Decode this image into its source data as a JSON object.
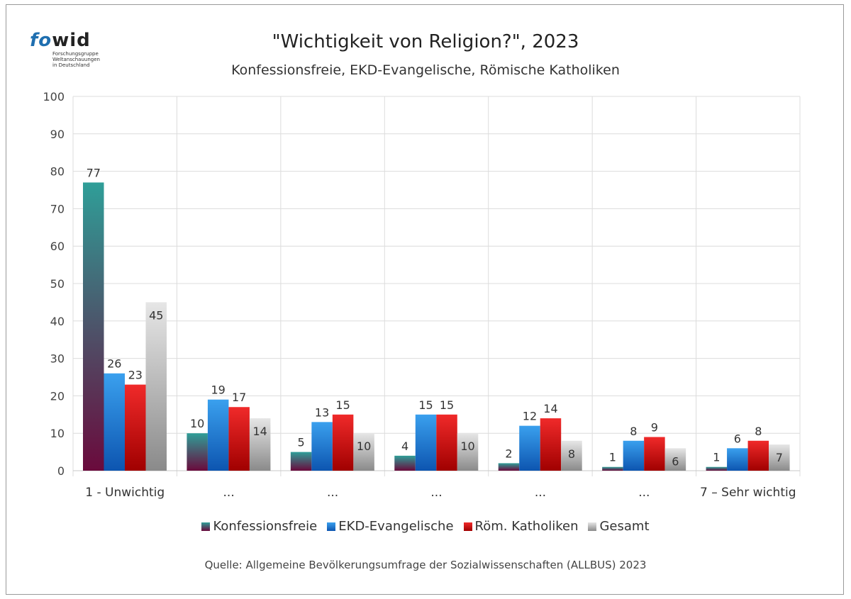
{
  "logo": {
    "word_fo": "fo",
    "word_wid": "wid",
    "subtitle": "Forschungsgruppe\nWeltanschauungen\nin Deutschland"
  },
  "source": "Quelle: Allgemeine Bevölkerungsumfrage der Sozialwissenschaften (ALLBUS) 2023",
  "chart_data": {
    "type": "bar",
    "title": "\"Wichtigkeit von Religion?\", 2023",
    "subtitle": "Konfessionsfreie, EKD-Evangelische, Römische Katholiken",
    "xlabel": "",
    "ylabel": "",
    "ylim": [
      0,
      100
    ],
    "yticks": [
      0,
      10,
      20,
      30,
      40,
      50,
      60,
      70,
      80,
      90,
      100
    ],
    "grid": true,
    "legend_position": "bottom",
    "categories": [
      "1 - Unwichtig",
      "...",
      "...",
      "...",
      "...",
      "...",
      "7 – Sehr wichtig"
    ],
    "series": [
      {
        "name": "Konfessionsfreie",
        "color_top": "#2f9e98",
        "color_bottom": "#6a0a3c",
        "values": [
          77,
          10,
          5,
          4,
          2,
          1,
          1
        ]
      },
      {
        "name": "EKD-Evangelische",
        "color_top": "#3aa0ee",
        "color_bottom": "#0d55b0",
        "values": [
          26,
          19,
          13,
          15,
          12,
          8,
          6
        ]
      },
      {
        "name": "Röm. Katholiken",
        "color_top": "#f02a2a",
        "color_bottom": "#a00000",
        "values": [
          23,
          17,
          15,
          15,
          14,
          9,
          8
        ]
      },
      {
        "name": "Gesamt",
        "color_top": "#e6e6e6",
        "color_bottom": "#8a8a8a",
        "values": [
          45,
          14,
          10,
          10,
          8,
          6,
          7
        ]
      }
    ]
  }
}
